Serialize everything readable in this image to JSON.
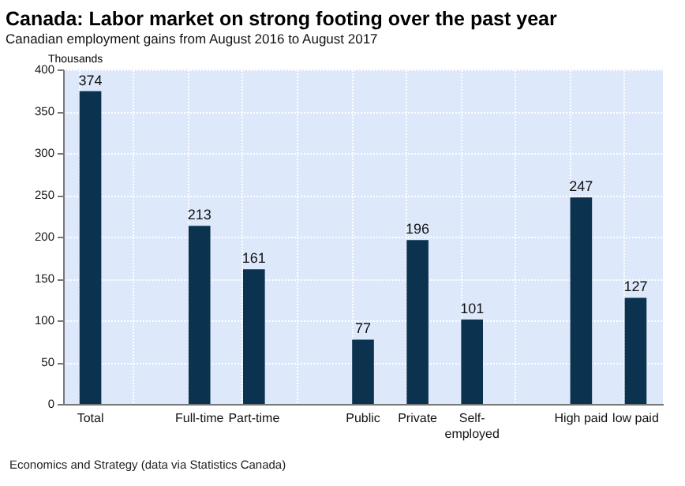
{
  "chart_data": {
    "type": "bar",
    "title": "Canada: Labor market on strong footing over the past year",
    "subtitle": "Canadian employment gains from August 2016 to August 2017",
    "ylabel": "Thousands",
    "categories": [
      "Total",
      null,
      "Full-time",
      "Part-time",
      null,
      "Public",
      "Private",
      "Self-\nemployed",
      null,
      "High paid",
      "low paid"
    ],
    "values": [
      374,
      null,
      213,
      161,
      null,
      77,
      196,
      101,
      null,
      247,
      127
    ],
    "color": "#0b3350",
    "ylim": [
      0,
      400
    ],
    "yticks": [
      0,
      50,
      100,
      150,
      200,
      250,
      300,
      350,
      400
    ],
    "grid": true,
    "data_labels": true,
    "annotations": [
      "Economics and Strategy (data via Statistics Canada)"
    ]
  }
}
